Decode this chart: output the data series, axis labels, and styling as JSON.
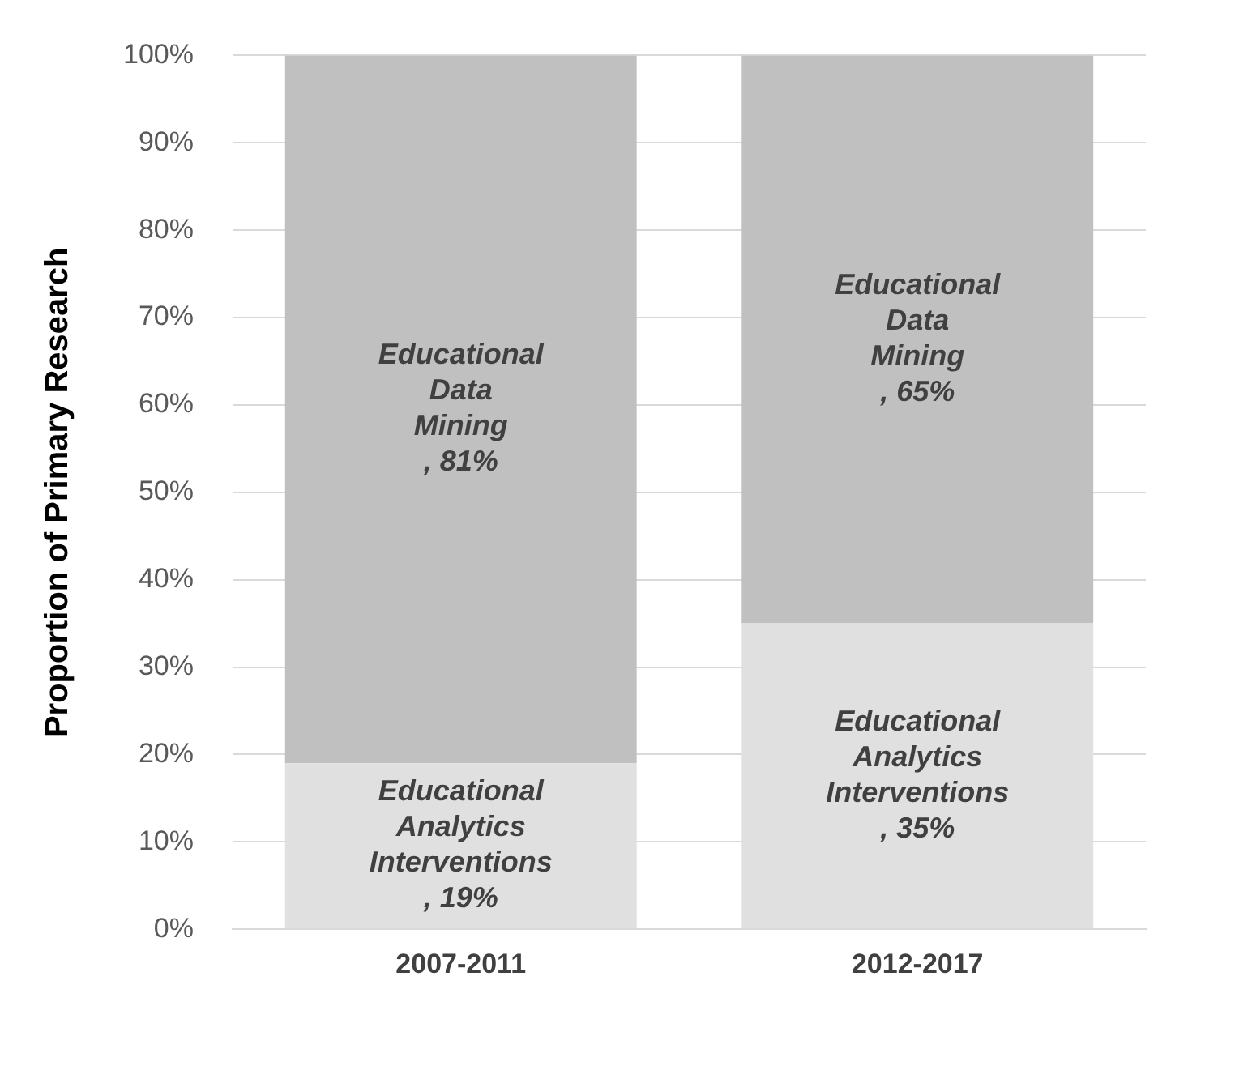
{
  "chart_data": {
    "type": "bar",
    "stacked": true,
    "ylabel": "Proportion of Primary Research",
    "categories": [
      "2007-2011",
      "2012-2017"
    ],
    "series": [
      {
        "name": "Educational Analytics Interventions",
        "color": "#e0e0e0",
        "values": [
          19,
          35
        ],
        "value_labels": [
          ", 19%",
          ", 35%"
        ]
      },
      {
        "name": "Educational Data Mining",
        "color": "#c0c0c0",
        "values": [
          81,
          65
        ],
        "value_labels": [
          ", 81%",
          ", 65%"
        ]
      }
    ],
    "ylim": [
      0,
      100
    ],
    "yticks": [
      {
        "value": 0,
        "label": "0%"
      },
      {
        "value": 10,
        "label": "10%"
      },
      {
        "value": 20,
        "label": "20%"
      },
      {
        "value": 30,
        "label": "30%"
      },
      {
        "value": 40,
        "label": "40%"
      },
      {
        "value": 50,
        "label": "50%"
      },
      {
        "value": 60,
        "label": "60%"
      },
      {
        "value": 70,
        "label": "70%"
      },
      {
        "value": 80,
        "label": "80%"
      },
      {
        "value": 90,
        "label": "90%"
      },
      {
        "value": 100,
        "label": "100%"
      }
    ],
    "grid": "y",
    "legend": false
  }
}
